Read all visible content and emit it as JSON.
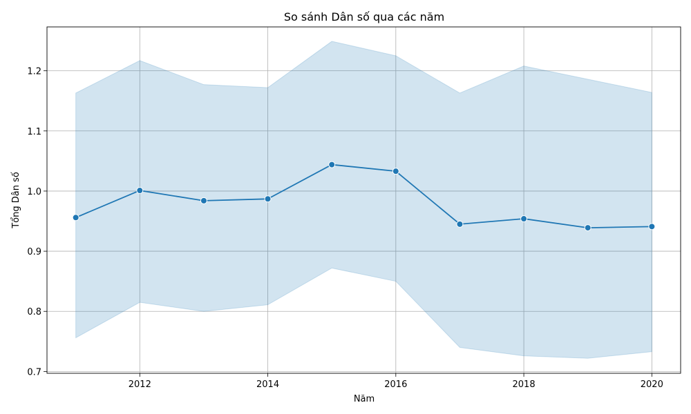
{
  "chart_data": {
    "type": "line",
    "title": "So sánh Dân số qua các năm",
    "xlabel": "Năm",
    "ylabel": "Tổng Dân số",
    "xlim": [
      2010.55,
      2020.45
    ],
    "ylim": [
      0.697,
      1.273
    ],
    "x_ticks": [
      2012,
      2014,
      2016,
      2018,
      2020
    ],
    "y_ticks": [
      0.7,
      0.8,
      0.9,
      1.0,
      1.1,
      1.2
    ],
    "x_tick_labels": [
      "2012",
      "2014",
      "2016",
      "2018",
      "2020"
    ],
    "y_tick_labels": [
      "0.7",
      "0.8",
      "0.9",
      "1.0",
      "1.1",
      "1.2"
    ],
    "grid": true,
    "line_color": "#1f77b4",
    "band_color": "#1f77b4",
    "series": [
      {
        "x": [
          2011,
          2012,
          2013,
          2014,
          2015,
          2016,
          2017,
          2018,
          2019,
          2020
        ],
        "values": [
          0.956,
          1.001,
          0.984,
          0.987,
          1.044,
          1.033,
          0.945,
          0.954,
          0.939,
          0.941
        ],
        "lower": [
          0.756,
          0.815,
          0.8,
          0.811,
          0.872,
          0.85,
          0.74,
          0.726,
          0.722,
          0.733
        ],
        "upper": [
          1.163,
          1.217,
          1.177,
          1.172,
          1.249,
          1.225,
          1.163,
          1.208,
          1.186,
          1.164
        ]
      }
    ]
  }
}
